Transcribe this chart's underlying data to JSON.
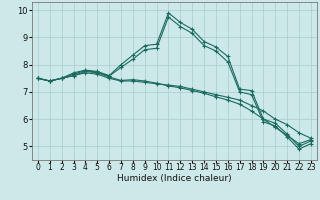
{
  "xlabel": "Humidex (Indice chaleur)",
  "xlim": [
    -0.5,
    23.5
  ],
  "ylim": [
    4.5,
    10.3
  ],
  "xticks": [
    0,
    1,
    2,
    3,
    4,
    5,
    6,
    7,
    8,
    9,
    10,
    11,
    12,
    13,
    14,
    15,
    16,
    17,
    18,
    19,
    20,
    21,
    22,
    23
  ],
  "yticks": [
    5,
    6,
    7,
    8,
    9,
    10
  ],
  "bg_color": "#cde8e8",
  "line_color": "#1a6b5e",
  "grid_color": "#b0d0d0",
  "series": [
    [
      7.5,
      7.4,
      7.5,
      7.6,
      7.7,
      7.65,
      7.5,
      7.4,
      7.4,
      7.35,
      7.3,
      7.25,
      7.2,
      7.1,
      7.0,
      6.9,
      6.8,
      6.7,
      6.5,
      6.3,
      6.0,
      5.8,
      5.5,
      5.3
    ],
    [
      7.5,
      7.4,
      7.5,
      7.6,
      7.75,
      7.7,
      7.55,
      7.42,
      7.45,
      7.4,
      7.32,
      7.22,
      7.15,
      7.05,
      6.95,
      6.82,
      6.7,
      6.55,
      6.3,
      6.0,
      5.7,
      5.4,
      5.1,
      5.25
    ],
    [
      7.5,
      7.4,
      7.5,
      7.7,
      7.8,
      7.75,
      7.6,
      8.0,
      8.35,
      8.7,
      8.75,
      9.9,
      9.55,
      9.3,
      8.85,
      8.65,
      8.3,
      7.1,
      7.05,
      6.0,
      5.85,
      5.45,
      5.0,
      5.2
    ],
    [
      7.5,
      7.4,
      7.5,
      7.65,
      7.78,
      7.72,
      7.58,
      7.9,
      8.2,
      8.55,
      8.6,
      9.75,
      9.4,
      9.15,
      8.7,
      8.5,
      8.1,
      7.0,
      6.9,
      5.9,
      5.75,
      5.35,
      4.9,
      5.1
    ]
  ]
}
